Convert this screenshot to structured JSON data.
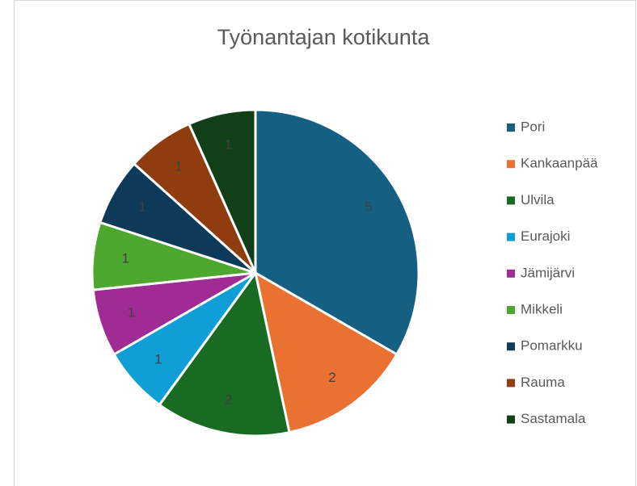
{
  "chart_data": {
    "type": "pie",
    "title": "Työnantajan kotikunta",
    "categories": [
      "Pori",
      "Kankaanpää",
      "Ulvila",
      "Eurajoki",
      "Jämijärvi",
      "Mikkeli",
      "Pomarkku",
      "Rauma",
      "Sastamala"
    ],
    "values": [
      5,
      2,
      2,
      1,
      1,
      1,
      1,
      1,
      1
    ],
    "colors": [
      "#156082",
      "#e97132",
      "#196b24",
      "#0f9ed5",
      "#a02b93",
      "#4ea72e",
      "#0e3a5a",
      "#8f3c0f",
      "#103f18"
    ],
    "legend": "right"
  }
}
